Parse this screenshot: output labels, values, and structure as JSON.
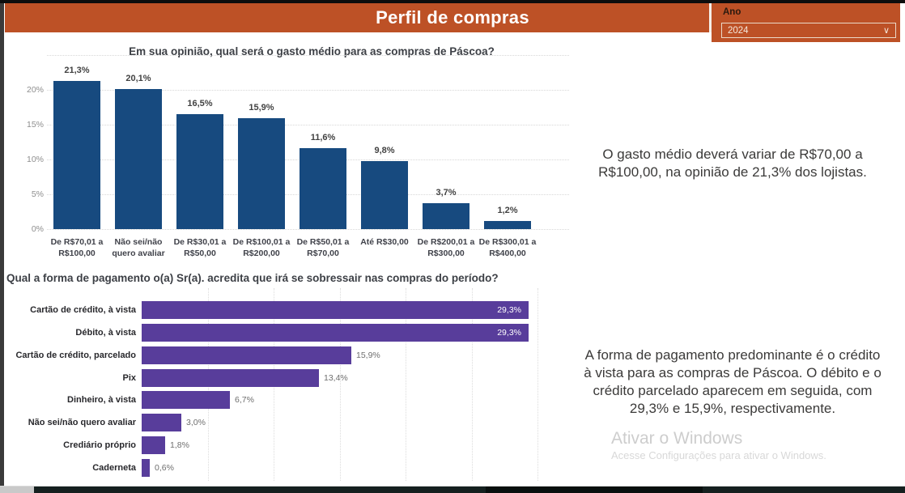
{
  "header": {
    "title": "Perfil de compras",
    "accent_color": "#bd5126"
  },
  "slicer": {
    "label": "Ano",
    "value": "2024",
    "chevron_glyph": "∨"
  },
  "insights": {
    "spending": "O gasto médio deverá variar de R$70,00 a\nR$100,00, na opinião de 21,3% dos lojistas.",
    "payment": "A forma de pagamento predominante é o crédito\nà vista para as compras de Páscoa. O débito e o\ncrédito parcelado aparecem em seguida, com\n29,3% e 15,9%, respectivamente."
  },
  "watermark": {
    "title": "Ativar o Windows",
    "subtitle": "Acesse Configurações para ativar o Windows."
  },
  "chart_data": [
    {
      "type": "bar",
      "orientation": "vertical",
      "title": "Em sua opinião, qual será o gasto médio para as compras de Páscoa?",
      "categories": [
        "De R$70,01 a\nR$100,00",
        "Não sei/não\nquero avaliar",
        "De R$30,01 a\nR$50,00",
        "De R$100,01 a\nR$200,00",
        "De R$50,01 a\nR$70,00",
        "Até R$30,00",
        "De R$200,01 a\nR$300,00",
        "De R$300,01 a\nR$400,00"
      ],
      "values": [
        21.3,
        20.1,
        16.5,
        15.9,
        11.6,
        9.8,
        3.7,
        1.2
      ],
      "labels": [
        "21,3%",
        "20,1%",
        "16,5%",
        "15,9%",
        "11,6%",
        "9,8%",
        "3,7%",
        "1,2%"
      ],
      "y_ticks": [
        "0%",
        "5%",
        "10%",
        "15%",
        "20%"
      ],
      "ylim": [
        0,
        25
      ],
      "grid": "horizontal-dotted",
      "bar_color": "#174a7f"
    },
    {
      "type": "bar",
      "orientation": "horizontal",
      "title": "Qual a forma de pagamento o(a) Sr(a). acredita que irá se sobressair nas compras do período?",
      "categories": [
        "Cartão de crédito, à vista",
        "Débito, à vista",
        "Cartão de crédito, parcelado",
        "Pix",
        "Dinheiro, à vista",
        "Não sei/não quero avaliar",
        "Crediário próprio",
        "Caderneta"
      ],
      "values": [
        29.3,
        29.3,
        15.9,
        13.4,
        6.7,
        3.0,
        1.8,
        0.6
      ],
      "labels": [
        "29,3%",
        "29,3%",
        "15,9%",
        "13,4%",
        "6,7%",
        "3,0%",
        "1,8%",
        "0,6%"
      ],
      "xlim": [
        0,
        32
      ],
      "grid": "vertical-dotted",
      "bar_color": "#583d9b"
    }
  ]
}
